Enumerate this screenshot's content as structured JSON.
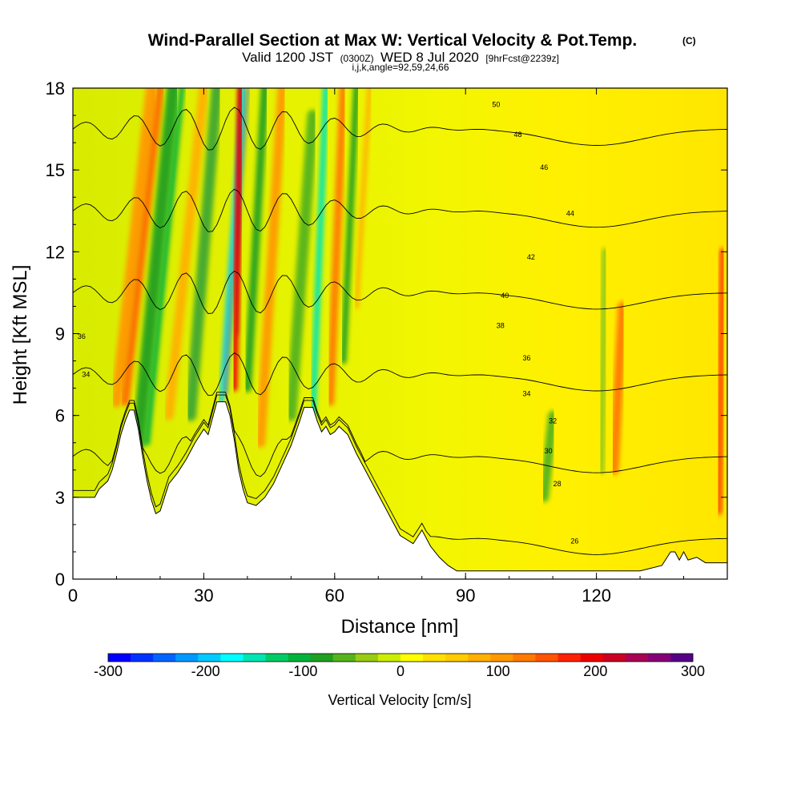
{
  "title": {
    "main": "Wind-Parallel Section at Max W: Vertical Velocity & Pot.Temp.",
    "copyright": "(C)",
    "valid_prefix": "Valid 1200 JST",
    "utc": "(0300Z)",
    "date": "WED 8 Jul 2020",
    "forecast": "[9hrFcst@2239z]",
    "indices": "i,j,k,angle=92,59,24,66"
  },
  "chart_data": {
    "type": "heatmap",
    "xlabel": "Distance [nm]",
    "ylabel": "Height [Kft MSL]",
    "xlim": [
      0,
      150
    ],
    "ylim": [
      0,
      18
    ],
    "x_ticks": [
      {
        "value": 0,
        "label": "0"
      },
      {
        "value": 30,
        "label": "30"
      },
      {
        "value": 60,
        "label": "60"
      },
      {
        "value": 90,
        "label": "90"
      },
      {
        "value": 120,
        "label": "120"
      }
    ],
    "y_ticks": [
      {
        "value": 0,
        "label": "0"
      },
      {
        "value": 3,
        "label": "3"
      },
      {
        "value": 6,
        "label": "6"
      },
      {
        "value": 9,
        "label": "9"
      },
      {
        "value": 12,
        "label": "12"
      },
      {
        "value": 15,
        "label": "15"
      },
      {
        "value": 18,
        "label": "18"
      }
    ],
    "colorbar": {
      "label": "Vertical Velocity [cm/s]",
      "range": [
        -300,
        300
      ],
      "ticks": [
        {
          "value": -300,
          "label": "-300"
        },
        {
          "value": -200,
          "label": "-200"
        },
        {
          "value": -100,
          "label": "-100"
        },
        {
          "value": 0,
          "label": "0"
        },
        {
          "value": 100,
          "label": "100"
        },
        {
          "value": 200,
          "label": "200"
        },
        {
          "value": 300,
          "label": "300"
        }
      ],
      "colors": [
        "#0000ff",
        "#0033ff",
        "#0066ff",
        "#0099ff",
        "#00ccff",
        "#00ffff",
        "#00e6b3",
        "#00cc66",
        "#00b33c",
        "#20a020",
        "#55b41e",
        "#99cc14",
        "#ccee00",
        "#ffff00",
        "#ffe000",
        "#ffcc00",
        "#ffb000",
        "#ff9900",
        "#ff7a00",
        "#ff5500",
        "#ff2200",
        "#ee0000",
        "#cc0022",
        "#aa0055",
        "#880077",
        "#550088"
      ]
    },
    "terrain": [
      [
        0,
        3
      ],
      [
        5,
        3
      ],
      [
        6,
        3.3
      ],
      [
        8,
        3.6
      ],
      [
        9,
        4
      ],
      [
        10,
        4.6
      ],
      [
        11,
        5.3
      ],
      [
        12,
        5.8
      ],
      [
        13,
        6.2
      ],
      [
        14,
        6.2
      ],
      [
        15,
        5.5
      ],
      [
        16,
        4.5
      ],
      [
        17,
        3.6
      ],
      [
        18,
        2.9
      ],
      [
        19,
        2.4
      ],
      [
        20,
        2.5
      ],
      [
        21,
        3
      ],
      [
        22,
        3.5
      ],
      [
        24,
        3.9
      ],
      [
        26,
        4.4
      ],
      [
        28,
        5
      ],
      [
        30,
        5.5
      ],
      [
        31,
        5.3
      ],
      [
        32,
        5.9
      ],
      [
        33,
        6.5
      ],
      [
        35,
        6.5
      ],
      [
        36,
        6
      ],
      [
        37,
        5.1
      ],
      [
        38,
        4
      ],
      [
        39,
        3.3
      ],
      [
        40,
        2.8
      ],
      [
        42,
        2.7
      ],
      [
        44,
        3
      ],
      [
        46,
        3.5
      ],
      [
        48,
        4.2
      ],
      [
        50,
        4.9
      ],
      [
        52,
        5.8
      ],
      [
        53,
        6.3
      ],
      [
        55,
        6.3
      ],
      [
        56,
        5.8
      ],
      [
        57,
        5.4
      ],
      [
        58,
        5.6
      ],
      [
        59,
        5.3
      ],
      [
        60,
        5.4
      ],
      [
        61,
        5.6
      ],
      [
        63,
        5.3
      ],
      [
        65,
        4.6
      ],
      [
        67,
        4
      ],
      [
        69,
        3.4
      ],
      [
        71,
        2.8
      ],
      [
        73,
        2.2
      ],
      [
        75,
        1.6
      ],
      [
        78,
        1.3
      ],
      [
        80,
        1.8
      ],
      [
        82,
        1.2
      ],
      [
        84,
        0.8
      ],
      [
        86,
        0.5
      ],
      [
        88,
        0.3
      ],
      [
        95,
        0.3
      ],
      [
        100,
        0.3
      ],
      [
        110,
        0.3
      ],
      [
        130,
        0.3
      ],
      [
        135,
        0.5
      ],
      [
        137,
        1
      ],
      [
        138,
        1
      ],
      [
        139,
        0.7
      ],
      [
        140,
        1
      ],
      [
        141,
        0.7
      ],
      [
        143,
        0.8
      ],
      [
        145,
        0.6
      ],
      [
        150,
        0.6
      ]
    ],
    "isentropes": [
      {
        "theta": 26,
        "label": "26"
      },
      {
        "theta": 28,
        "label": "28"
      },
      {
        "theta": 30,
        "label": "30"
      },
      {
        "theta": 32,
        "label": "32"
      },
      {
        "theta": 34,
        "label": "34"
      },
      {
        "theta": 36,
        "label": "36"
      },
      {
        "theta": 38,
        "label": "38"
      },
      {
        "theta": 40,
        "label": "40"
      },
      {
        "theta": 42,
        "label": "42"
      },
      {
        "theta": 44,
        "label": "44"
      },
      {
        "theta": 46,
        "label": "46"
      },
      {
        "theta": 48,
        "label": "48"
      },
      {
        "theta": 50,
        "label": "50"
      }
    ]
  }
}
